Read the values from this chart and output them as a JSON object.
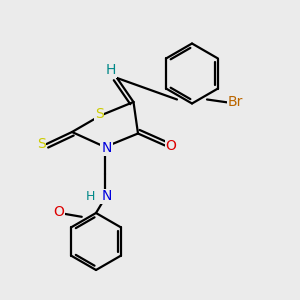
{
  "background_color": "#ebebeb",
  "fig_size": [
    3.0,
    3.0
  ],
  "dpi": 100,
  "atom_colors": {
    "S": "#cccc00",
    "N": "#0000dd",
    "O": "#dd0000",
    "Br": "#bb6600",
    "H": "#008888",
    "C": "#000000"
  }
}
